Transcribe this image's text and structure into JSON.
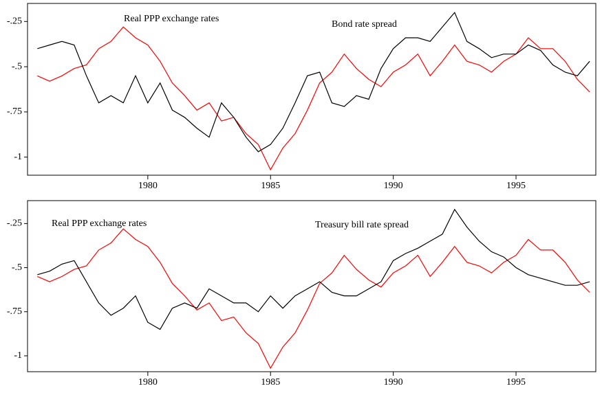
{
  "chart_data": [
    {
      "type": "line",
      "annotations": [
        "Real PPP exchange rates",
        "Bond rate spread"
      ],
      "x": [
        1975.5,
        1976,
        1976.5,
        1977,
        1977.5,
        1978,
        1978.5,
        1979,
        1979.5,
        1980,
        1980.5,
        1981,
        1981.5,
        1982,
        1982.5,
        1983,
        1983.5,
        1984,
        1984.5,
        1985,
        1985.5,
        1986,
        1986.5,
        1987,
        1987.5,
        1988,
        1988.5,
        1989,
        1989.5,
        1990,
        1990.5,
        1991,
        1991.5,
        1992,
        1992.5,
        1993,
        1993.5,
        1994,
        1994.5,
        1995,
        1995.5,
        1996,
        1996.5,
        1997,
        1997.5,
        1998
      ],
      "series": [
        {
          "color": "#ff0000",
          "values": [
            -0.55,
            -0.58,
            -0.55,
            -0.51,
            -0.49,
            -0.4,
            -0.36,
            -0.28,
            -0.34,
            -0.38,
            -0.47,
            -0.59,
            -0.66,
            -0.74,
            -0.7,
            -0.8,
            -0.78,
            -0.87,
            -0.93,
            -1.07,
            -0.95,
            -0.87,
            -0.74,
            -0.59,
            -0.53,
            -0.43,
            -0.51,
            -0.57,
            -0.61,
            -0.53,
            -0.49,
            -0.43,
            -0.55,
            -0.47,
            -0.38,
            -0.47,
            -0.49,
            -0.53,
            -0.47,
            -0.43,
            -0.34,
            -0.4,
            -0.4,
            -0.47,
            -0.57,
            -0.64
          ]
        },
        {
          "color": "#000000",
          "values": [
            -0.4,
            -0.38,
            -0.36,
            -0.38,
            -0.55,
            -0.7,
            -0.66,
            -0.7,
            -0.55,
            -0.7,
            -0.59,
            -0.74,
            -0.78,
            -0.84,
            -0.89,
            -0.7,
            -0.78,
            -0.89,
            -0.97,
            -0.93,
            -0.84,
            -0.7,
            -0.55,
            -0.53,
            -0.7,
            -0.72,
            -0.66,
            -0.68,
            -0.51,
            -0.4,
            -0.34,
            -0.34,
            -0.36,
            -0.28,
            -0.2,
            -0.36,
            -0.4,
            -0.45,
            -0.43,
            -0.43,
            -0.38,
            -0.41,
            -0.49,
            -0.53,
            -0.55,
            -0.47
          ]
        }
      ],
      "xlim": [
        1975.1,
        1998.25
      ],
      "xticks": [
        1980,
        1985,
        1990,
        1995
      ],
      "ylim": [
        -1.1,
        -0.15
      ],
      "yticks": [
        {
          "value": -0.25,
          "label": "-.25"
        },
        {
          "value": -0.5,
          "label": "-.5"
        },
        {
          "value": -0.75,
          "label": "-.75"
        },
        -1
      ]
    },
    {
      "type": "line",
      "annotations": [
        "Real PPP exchange rates",
        "Treasury bill rate spread"
      ],
      "x": [
        1975.5,
        1976,
        1976.5,
        1977,
        1977.5,
        1978,
        1978.5,
        1979,
        1979.5,
        1980,
        1980.5,
        1981,
        1981.5,
        1982,
        1982.5,
        1983,
        1983.5,
        1984,
        1984.5,
        1985,
        1985.5,
        1986,
        1986.5,
        1987,
        1987.5,
        1988,
        1988.5,
        1989,
        1989.5,
        1990,
        1990.5,
        1991,
        1991.5,
        1992,
        1992.5,
        1993,
        1993.5,
        1994,
        1994.5,
        1995,
        1995.5,
        1996,
        1996.5,
        1997,
        1997.5,
        1998
      ],
      "series": [
        {
          "color": "#ff0000",
          "values": [
            -0.55,
            -0.58,
            -0.55,
            -0.51,
            -0.49,
            -0.4,
            -0.36,
            -0.28,
            -0.34,
            -0.38,
            -0.47,
            -0.59,
            -0.66,
            -0.74,
            -0.7,
            -0.8,
            -0.78,
            -0.87,
            -0.93,
            -1.07,
            -0.95,
            -0.87,
            -0.74,
            -0.59,
            -0.53,
            -0.43,
            -0.51,
            -0.57,
            -0.61,
            -0.53,
            -0.49,
            -0.43,
            -0.55,
            -0.47,
            -0.38,
            -0.47,
            -0.49,
            -0.53,
            -0.47,
            -0.43,
            -0.34,
            -0.4,
            -0.4,
            -0.47,
            -0.57,
            -0.64
          ]
        },
        {
          "color": "#000000",
          "values": [
            -0.54,
            -0.52,
            -0.48,
            -0.46,
            -0.58,
            -0.7,
            -0.77,
            -0.73,
            -0.66,
            -0.81,
            -0.85,
            -0.73,
            -0.7,
            -0.73,
            -0.62,
            -0.66,
            -0.7,
            -0.7,
            -0.75,
            -0.66,
            -0.73,
            -0.66,
            -0.62,
            -0.58,
            -0.64,
            -0.66,
            -0.66,
            -0.62,
            -0.58,
            -0.46,
            -0.42,
            -0.39,
            -0.35,
            -0.31,
            -0.17,
            -0.27,
            -0.35,
            -0.41,
            -0.44,
            -0.5,
            -0.54,
            -0.56,
            -0.58,
            -0.6,
            -0.6,
            -0.58
          ]
        }
      ],
      "xlim": [
        1975.1,
        1998.25
      ],
      "xticks": [
        1980,
        1985,
        1990,
        1995
      ],
      "ylim": [
        -1.09,
        -0.12
      ],
      "yticks": [
        {
          "value": -0.25,
          "label": "-.25"
        },
        {
          "value": -0.5,
          "label": "-.5"
        },
        {
          "value": -0.75,
          "label": "-.75"
        },
        -1
      ]
    }
  ]
}
